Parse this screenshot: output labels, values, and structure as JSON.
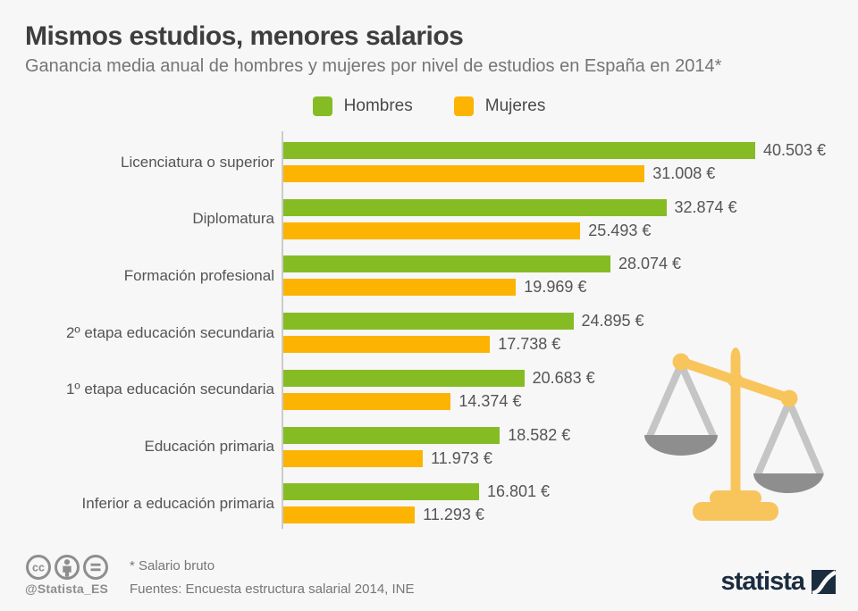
{
  "header": {
    "title": "Mismos estudios, menores salarios",
    "subtitle": "Ganancia media anual de hombres y mujeres por nivel de estudios en España en 2014*"
  },
  "legend": {
    "items": [
      {
        "label": "Hombres",
        "color": "#85bc24"
      },
      {
        "label": "Mujeres",
        "color": "#fdb301"
      }
    ]
  },
  "chart_data": {
    "type": "bar",
    "orientation": "horizontal",
    "title": "Mismos estudios, menores salarios",
    "subtitle": "Ganancia media anual de hombres y mujeres por nivel de estudios en España en 2014*",
    "unit": "EUR",
    "grid": false,
    "legend_position": "top",
    "xlim": [
      0,
      40503
    ],
    "categories": [
      "Licenciatura o superior",
      "Diplomatura",
      "Formación profesional",
      "2º etapa educación secundaria",
      "1º etapa educación secundaria",
      "Educación primaria",
      "Inferior a educación primaria"
    ],
    "series": [
      {
        "name": "Hombres",
        "color": "#85bc24",
        "values": [
          40503,
          32874,
          28074,
          24895,
          20683,
          18582,
          16801
        ],
        "value_labels": [
          "40.503 €",
          "32.874 €",
          "28.074 €",
          "24.895 €",
          "20.683 €",
          "18.582 €",
          "16.801 €"
        ]
      },
      {
        "name": "Mujeres",
        "color": "#fdb301",
        "values": [
          31008,
          25493,
          19969,
          17738,
          14374,
          11973,
          11293
        ],
        "value_labels": [
          "31.008 €",
          "25.493 €",
          "19.969 €",
          "17.738 €",
          "14.374 €",
          "11.973 €",
          "11.293 €"
        ]
      }
    ]
  },
  "footer": {
    "handle": "@Statista_ES",
    "note": "* Salario bruto",
    "sources": "Fuentes: Encuesta estructura salarial 2014,  INE",
    "brand": "statista"
  },
  "icons": {
    "license": [
      "cc-icon",
      "attribution-icon",
      "equal-icon"
    ],
    "decoration": "balance-scale-icon",
    "license_color": "#8e8e8e",
    "scale_gold": "#f8c55d",
    "scale_gray_light": "#c5c5c5",
    "scale_gray_dark": "#8e8e8e",
    "brand_navy": "#1b2c3f"
  }
}
